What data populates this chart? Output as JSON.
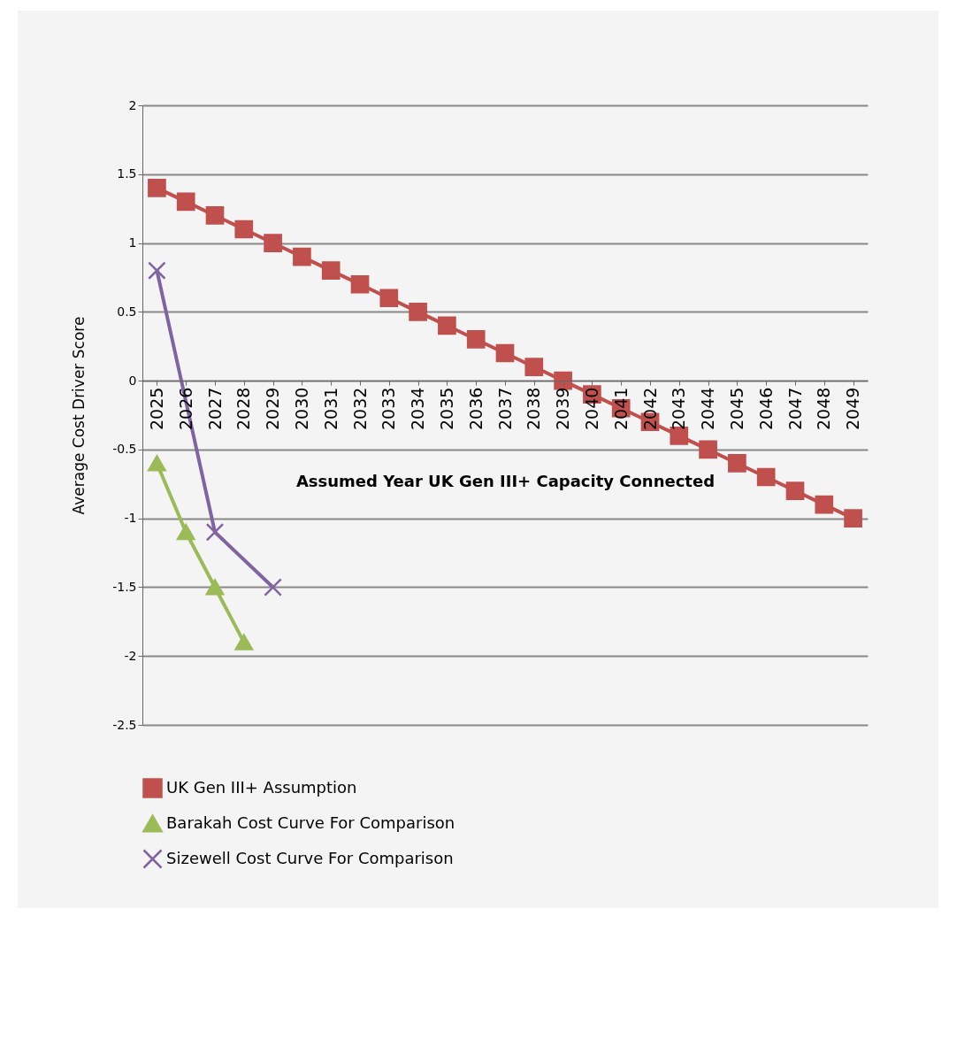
{
  "chart_data": {
    "type": "line",
    "xlabel": "Assumed Year UK Gen III+ Capacity Connected",
    "ylabel": "Average Cost Driver Score",
    "categories": [
      "2025",
      "2026",
      "2027",
      "2028",
      "2029",
      "2030",
      "2031",
      "2032",
      "2033",
      "2034",
      "2035",
      "2036",
      "2037",
      "2038",
      "2039",
      "2040",
      "2041",
      "2042",
      "2043",
      "2044",
      "2045",
      "2046",
      "2047",
      "2048",
      "2049"
    ],
    "series": [
      {
        "name": "UK Gen III+ Assumption",
        "color": "#c0504d",
        "marker": "square",
        "values": [
          1.4,
          1.3,
          1.2,
          1.1,
          1.0,
          0.9,
          0.8,
          0.7,
          0.6,
          0.5,
          0.4,
          0.3,
          0.2,
          0.1,
          0,
          -0.1,
          -0.2,
          -0.3,
          -0.4,
          -0.5,
          -0.6,
          -0.7,
          -0.8,
          -0.9,
          -1.0
        ]
      },
      {
        "name": "Barakah Cost Curve For Comparison",
        "color": "#9bbb59",
        "marker": "triangle",
        "values": [
          -0.6,
          -1.1,
          -1.5,
          -1.9,
          null,
          null,
          null,
          null,
          null,
          null,
          null,
          null,
          null,
          null,
          null,
          null,
          null,
          null,
          null,
          null,
          null,
          null,
          null,
          null,
          null
        ]
      },
      {
        "name": "Sizewell Cost Curve For Comparison",
        "color": "#8064a2",
        "marker": "cross",
        "values": [
          0.8,
          null,
          -1.1,
          null,
          -1.5,
          null,
          null,
          null,
          null,
          null,
          null,
          null,
          null,
          null,
          null,
          null,
          null,
          null,
          null,
          null,
          null,
          null,
          null,
          null,
          null
        ]
      }
    ],
    "ylim": [
      -2.5,
      2
    ],
    "yticks": [
      -2.5,
      -2,
      -1.5,
      -1,
      -0.5,
      0,
      0.5,
      1,
      1.5,
      2
    ],
    "grid": "y",
    "legend": "bottom",
    "line_style": "solid"
  }
}
